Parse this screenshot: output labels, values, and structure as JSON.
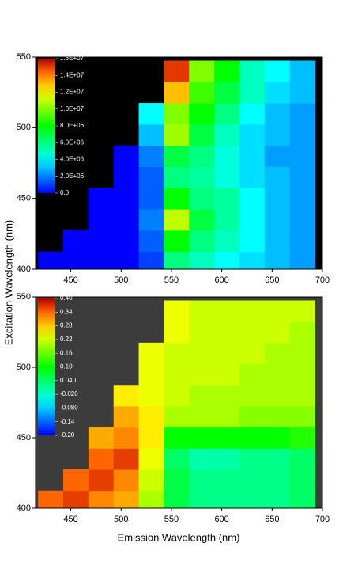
{
  "chart_data": [
    {
      "type": "heatmap",
      "ylabel": "Excitation Wavelength (nm)",
      "mask_color": "#000000",
      "x": [
        430,
        455,
        480,
        505,
        530,
        555,
        580,
        605,
        630,
        655,
        680
      ],
      "y": [
        405,
        420,
        435,
        450,
        465,
        480,
        495,
        510,
        525,
        540
      ],
      "z": [
        [
          0,
          0,
          0,
          0,
          1000000.0,
          6000000.0,
          5000000.0,
          4000000.0,
          3500000.0,
          3000000.0,
          2500000.0
        ],
        [
          null,
          0,
          0,
          0,
          1500000.0,
          8000000.0,
          6000000.0,
          5000000.0,
          4000000.0,
          3000000.0,
          2500000.0
        ],
        [
          null,
          null,
          0,
          0,
          2000000.0,
          11000000.0,
          7000000.0,
          5500000.0,
          4000000.0,
          3000000.0,
          2500000.0
        ],
        [
          null,
          null,
          0,
          0,
          1500000.0,
          8000000.0,
          6000000.0,
          5500000.0,
          4000000.0,
          3000000.0,
          2500000.0
        ],
        [
          null,
          null,
          null,
          0,
          1500000.0,
          6000000.0,
          5500000.0,
          4500000.0,
          3500000.0,
          3000000.0,
          2500000.0
        ],
        [
          null,
          null,
          null,
          0,
          2000000.0,
          7000000.0,
          6000000.0,
          4500000.0,
          3500000.0,
          2500000.0,
          2500000.0
        ],
        [
          null,
          null,
          null,
          null,
          3000000.0,
          10500000.0,
          7000000.0,
          5000000.0,
          3500000.0,
          3000000.0,
          2500000.0
        ],
        [
          null,
          null,
          null,
          null,
          4000000.0,
          10000000.0,
          8000000.0,
          6000000.0,
          4000000.0,
          3000000.0,
          2500000.0
        ],
        [
          null,
          null,
          null,
          null,
          null,
          13000000.0,
          9000000.0,
          7000000.0,
          5000000.0,
          3500000.0,
          3000000.0
        ],
        [
          null,
          null,
          null,
          null,
          null,
          15000000.0,
          10000000.0,
          8000000.0,
          5000000.0,
          4000000.0,
          3000000.0
        ]
      ],
      "xlim": [
        415,
        700
      ],
      "ylim": [
        400,
        550
      ],
      "xticks": [
        450,
        500,
        550,
        600,
        650,
        700
      ],
      "yticks": [
        400,
        450,
        500,
        550
      ],
      "zlim": [
        0,
        16000000
      ],
      "zticks": [
        {
          "value": 16000000,
          "label": "1.6E+07"
        },
        {
          "value": 14000000,
          "label": "1.4E+07"
        },
        {
          "value": 12000000,
          "label": "1.2E+07"
        },
        {
          "value": 10000000,
          "label": "1.0E+07"
        },
        {
          "value": 8000000,
          "label": "8.0E+06"
        },
        {
          "value": 6000000,
          "label": "6.0E+06"
        },
        {
          "value": 4000000,
          "label": "4.0E+06"
        },
        {
          "value": 2000000,
          "label": "2.0E+06"
        },
        {
          "value": 0,
          "label": "0.0"
        }
      ]
    },
    {
      "type": "heatmap",
      "xlabel": "Emission Wavelength (nm)",
      "mask_color": "#3c3c3c",
      "x": [
        430,
        455,
        480,
        505,
        530,
        555,
        580,
        605,
        630,
        655,
        680
      ],
      "y": [
        405,
        420,
        435,
        450,
        465,
        480,
        495,
        510,
        525,
        540
      ],
      "z": [
        [
          0.34,
          0.36,
          0.32,
          0.3,
          0.2,
          0.06,
          0.02,
          0.02,
          0.02,
          0.02,
          0.04
        ],
        [
          null,
          0.34,
          0.36,
          0.32,
          0.22,
          0.06,
          0.02,
          0.02,
          0.02,
          0.02,
          0.04
        ],
        [
          null,
          null,
          0.34,
          0.36,
          0.24,
          0.04,
          0.0,
          0.0,
          0.02,
          0.02,
          0.04
        ],
        [
          null,
          null,
          0.3,
          0.32,
          0.26,
          0.1,
          0.1,
          0.1,
          0.1,
          0.1,
          0.12
        ],
        [
          null,
          null,
          null,
          0.3,
          0.26,
          0.2,
          0.2,
          0.2,
          0.18,
          0.18,
          0.18
        ],
        [
          null,
          null,
          null,
          0.26,
          0.24,
          0.22,
          0.2,
          0.2,
          0.2,
          0.2,
          0.2
        ],
        [
          null,
          null,
          null,
          null,
          0.24,
          0.22,
          0.22,
          0.22,
          0.2,
          0.2,
          0.2
        ],
        [
          null,
          null,
          null,
          null,
          0.24,
          0.22,
          0.22,
          0.22,
          0.22,
          0.2,
          0.2
        ],
        [
          null,
          null,
          null,
          null,
          null,
          0.24,
          0.22,
          0.22,
          0.22,
          0.22,
          0.2
        ],
        [
          null,
          null,
          null,
          null,
          null,
          0.24,
          0.22,
          0.22,
          0.22,
          0.22,
          0.22
        ]
      ],
      "xlim": [
        415,
        700
      ],
      "ylim": [
        400,
        550
      ],
      "xticks": [
        450,
        500,
        550,
        600,
        650,
        700
      ],
      "yticks": [
        400,
        450,
        500,
        550
      ],
      "zlim": [
        -0.2,
        0.4
      ],
      "zticks": [
        {
          "value": 0.4,
          "label": "0.40"
        },
        0.34,
        0.28,
        0.22,
        0.16,
        {
          "value": 0.1,
          "label": "0.10"
        },
        {
          "value": 0.04,
          "label": "0.040"
        },
        {
          "value": -0.02,
          "label": "-0.020"
        },
        {
          "value": -0.08,
          "label": "-0.080"
        },
        -0.14,
        {
          "value": -0.2,
          "label": "-0.20"
        }
      ]
    }
  ]
}
